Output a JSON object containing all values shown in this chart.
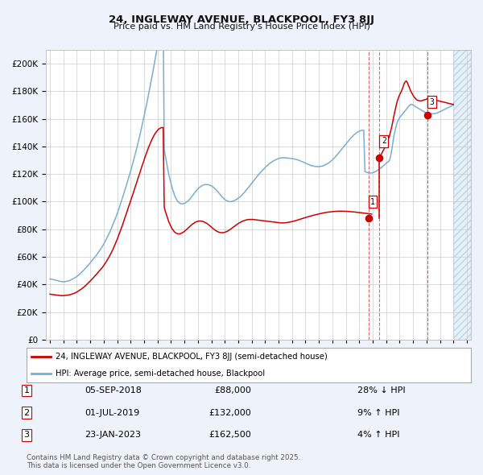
{
  "title": "24, INGLEWAY AVENUE, BLACKPOOL, FY3 8JJ",
  "subtitle": "Price paid vs. HM Land Registry's House Price Index (HPI)",
  "ytick_vals": [
    0,
    20000,
    40000,
    60000,
    80000,
    100000,
    120000,
    140000,
    160000,
    180000,
    200000
  ],
  "ylim": [
    0,
    210000
  ],
  "xlim_start": 1994.7,
  "xlim_end": 2026.3,
  "bg_color": "#eef2fa",
  "plot_bg_color": "#ffffff",
  "grid_color": "#cccccc",
  "red_color": "#cc0000",
  "blue_color": "#7aadd4",
  "hatch_color": "#c8d8ee",
  "shade_start": 2025.0,
  "transactions": [
    {
      "date": "05-SEP-2018",
      "price": 88000,
      "pct": "28% ↓ HPI",
      "year": 2018.68,
      "label": "1"
    },
    {
      "date": "01-JUL-2019",
      "price": 132000,
      "pct": "9% ↑ HPI",
      "year": 2019.5,
      "label": "2"
    },
    {
      "date": "23-JAN-2023",
      "price": 162500,
      "pct": "4% ↑ HPI",
      "year": 2023.07,
      "label": "3"
    }
  ],
  "legend_line1": "24, INGLEWAY AVENUE, BLACKPOOL, FY3 8JJ (semi-detached house)",
  "legend_line2": "HPI: Average price, semi-detached house, Blackpool",
  "copyright": "Contains HM Land Registry data © Crown copyright and database right 2025.\nThis data is licensed under the Open Government Licence v3.0.",
  "hpi_years": [
    1995.0,
    1995.08,
    1995.17,
    1995.25,
    1995.33,
    1995.42,
    1995.5,
    1995.58,
    1995.67,
    1995.75,
    1995.83,
    1995.92,
    1996.0,
    1996.08,
    1996.17,
    1996.25,
    1996.33,
    1996.42,
    1996.5,
    1996.58,
    1996.67,
    1996.75,
    1996.83,
    1996.92,
    1997.0,
    1997.08,
    1997.17,
    1997.25,
    1997.33,
    1997.42,
    1997.5,
    1997.58,
    1997.67,
    1997.75,
    1997.83,
    1997.92,
    1998.0,
    1998.08,
    1998.17,
    1998.25,
    1998.33,
    1998.42,
    1998.5,
    1998.58,
    1998.67,
    1998.75,
    1998.83,
    1998.92,
    1999.0,
    1999.08,
    1999.17,
    1999.25,
    1999.33,
    1999.42,
    1999.5,
    1999.58,
    1999.67,
    1999.75,
    1999.83,
    1999.92,
    2000.0,
    2000.08,
    2000.17,
    2000.25,
    2000.33,
    2000.42,
    2000.5,
    2000.58,
    2000.67,
    2000.75,
    2000.83,
    2000.92,
    2001.0,
    2001.08,
    2001.17,
    2001.25,
    2001.33,
    2001.42,
    2001.5,
    2001.58,
    2001.67,
    2001.75,
    2001.83,
    2001.92,
    2002.0,
    2002.08,
    2002.17,
    2002.25,
    2002.33,
    2002.42,
    2002.5,
    2002.58,
    2002.67,
    2002.75,
    2002.83,
    2002.92,
    2003.0,
    2003.08,
    2003.17,
    2003.25,
    2003.33,
    2003.42,
    2003.5,
    2003.58,
    2003.67,
    2003.75,
    2003.83,
    2003.92,
    2004.0,
    2004.08,
    2004.17,
    2004.25,
    2004.33,
    2004.42,
    2004.5,
    2004.58,
    2004.67,
    2004.75,
    2004.83,
    2004.92,
    2005.0,
    2005.08,
    2005.17,
    2005.25,
    2005.33,
    2005.42,
    2005.5,
    2005.58,
    2005.67,
    2005.75,
    2005.83,
    2005.92,
    2006.0,
    2006.08,
    2006.17,
    2006.25,
    2006.33,
    2006.42,
    2006.5,
    2006.58,
    2006.67,
    2006.75,
    2006.83,
    2006.92,
    2007.0,
    2007.08,
    2007.17,
    2007.25,
    2007.33,
    2007.42,
    2007.5,
    2007.58,
    2007.67,
    2007.75,
    2007.83,
    2007.92,
    2008.0,
    2008.08,
    2008.17,
    2008.25,
    2008.33,
    2008.42,
    2008.5,
    2008.58,
    2008.67,
    2008.75,
    2008.83,
    2008.92,
    2009.0,
    2009.08,
    2009.17,
    2009.25,
    2009.33,
    2009.42,
    2009.5,
    2009.58,
    2009.67,
    2009.75,
    2009.83,
    2009.92,
    2010.0,
    2010.08,
    2010.17,
    2010.25,
    2010.33,
    2010.42,
    2010.5,
    2010.58,
    2010.67,
    2010.75,
    2010.83,
    2010.92,
    2011.0,
    2011.08,
    2011.17,
    2011.25,
    2011.33,
    2011.42,
    2011.5,
    2011.58,
    2011.67,
    2011.75,
    2011.83,
    2011.92,
    2012.0,
    2012.08,
    2012.17,
    2012.25,
    2012.33,
    2012.42,
    2012.5,
    2012.58,
    2012.67,
    2012.75,
    2012.83,
    2012.92,
    2013.0,
    2013.08,
    2013.17,
    2013.25,
    2013.33,
    2013.42,
    2013.5,
    2013.58,
    2013.67,
    2013.75,
    2013.83,
    2013.92,
    2014.0,
    2014.08,
    2014.17,
    2014.25,
    2014.33,
    2014.42,
    2014.5,
    2014.58,
    2014.67,
    2014.75,
    2014.83,
    2014.92,
    2015.0,
    2015.08,
    2015.17,
    2015.25,
    2015.33,
    2015.42,
    2015.5,
    2015.58,
    2015.67,
    2015.75,
    2015.83,
    2015.92,
    2016.0,
    2016.08,
    2016.17,
    2016.25,
    2016.33,
    2016.42,
    2016.5,
    2016.58,
    2016.67,
    2016.75,
    2016.83,
    2016.92,
    2017.0,
    2017.08,
    2017.17,
    2017.25,
    2017.33,
    2017.42,
    2017.5,
    2017.58,
    2017.67,
    2017.75,
    2017.83,
    2017.92,
    2018.0,
    2018.08,
    2018.17,
    2018.25,
    2018.33,
    2018.42,
    2018.5,
    2018.58,
    2018.67,
    2018.75,
    2018.83,
    2018.92,
    2019.0,
    2019.08,
    2019.17,
    2019.25,
    2019.33,
    2019.42,
    2019.5,
    2019.58,
    2019.67,
    2019.75,
    2019.83,
    2019.92,
    2020.0,
    2020.08,
    2020.17,
    2020.25,
    2020.33,
    2020.42,
    2020.5,
    2020.58,
    2020.67,
    2020.75,
    2020.83,
    2020.92,
    2021.0,
    2021.08,
    2021.17,
    2021.25,
    2021.33,
    2021.42,
    2021.5,
    2021.58,
    2021.67,
    2021.75,
    2021.83,
    2021.92,
    2022.0,
    2022.08,
    2022.17,
    2022.25,
    2022.33,
    2022.42,
    2022.5,
    2022.58,
    2022.67,
    2022.75,
    2022.83,
    2022.92,
    2023.0,
    2023.08,
    2023.17,
    2023.25,
    2023.33,
    2023.42,
    2023.5,
    2023.58,
    2023.67,
    2023.75,
    2023.83,
    2023.92,
    2024.0,
    2024.08,
    2024.17,
    2024.25,
    2024.33,
    2024.42,
    2024.5,
    2024.58,
    2024.67,
    2024.75,
    2024.83,
    2024.92,
    2025.0
  ],
  "hpi_vals": [
    44000,
    43800,
    43700,
    43500,
    43300,
    43100,
    42900,
    42700,
    42500,
    42300,
    42100,
    42000,
    41900,
    42000,
    42100,
    42300,
    42500,
    42700,
    43000,
    43400,
    43800,
    44200,
    44700,
    45200,
    45800,
    46400,
    47100,
    47800,
    48600,
    49400,
    50200,
    51100,
    52000,
    52900,
    53800,
    54700,
    55700,
    56700,
    57700,
    58700,
    59700,
    60700,
    61800,
    62900,
    64100,
    65300,
    66600,
    67900,
    69300,
    70800,
    72300,
    73900,
    75500,
    77200,
    79000,
    80900,
    82900,
    84900,
    87000,
    89100,
    91300,
    93600,
    96000,
    98400,
    100900,
    103400,
    106000,
    108700,
    111400,
    114100,
    116800,
    119500,
    122300,
    125100,
    128000,
    131000,
    134100,
    137300,
    140600,
    143900,
    147300,
    150800,
    154400,
    158100,
    161900,
    165700,
    169600,
    173600,
    177700,
    181900,
    186100,
    190400,
    194800,
    199200,
    203700,
    208200,
    212800,
    217400,
    221900,
    226400,
    230700,
    234900,
    138000,
    133000,
    128500,
    124000,
    120000,
    116500,
    113200,
    110200,
    107500,
    105100,
    103100,
    101500,
    100200,
    99400,
    98800,
    98500,
    98400,
    98500,
    98700,
    99100,
    99700,
    100300,
    101100,
    102000,
    103000,
    104100,
    105200,
    106300,
    107400,
    108400,
    109300,
    110100,
    110700,
    111300,
    111800,
    112100,
    112300,
    112400,
    112400,
    112300,
    112100,
    111800,
    111400,
    110900,
    110300,
    109600,
    108800,
    107900,
    107000,
    106000,
    105000,
    104000,
    103100,
    102300,
    101600,
    101000,
    100600,
    100300,
    100100,
    100000,
    100100,
    100300,
    100600,
    101000,
    101400,
    101900,
    102500,
    103100,
    103800,
    104600,
    105400,
    106300,
    107200,
    108200,
    109200,
    110200,
    111300,
    112300,
    113400,
    114400,
    115500,
    116500,
    117500,
    118500,
    119500,
    120400,
    121300,
    122200,
    123000,
    123900,
    124700,
    125500,
    126200,
    127000,
    127600,
    128200,
    128800,
    129300,
    129800,
    130200,
    130600,
    131000,
    131300,
    131500,
    131700,
    131800,
    131800,
    131800,
    131700,
    131700,
    131600,
    131500,
    131400,
    131300,
    131200,
    131100,
    130900,
    130700,
    130500,
    130300,
    130000,
    129700,
    129400,
    129000,
    128700,
    128300,
    127900,
    127500,
    127200,
    126800,
    126500,
    126200,
    126000,
    125800,
    125600,
    125500,
    125400,
    125400,
    125400,
    125500,
    125600,
    125800,
    126100,
    126400,
    126800,
    127200,
    127700,
    128300,
    128900,
    129600,
    130300,
    131100,
    131900,
    132800,
    133800,
    134700,
    135700,
    136700,
    137700,
    138700,
    139700,
    140700,
    141700,
    142700,
    143700,
    144700,
    145600,
    146500,
    147400,
    148200,
    148900,
    149600,
    150200,
    150700,
    151100,
    151400,
    151600,
    151800,
    151800,
    121800,
    121500,
    121200,
    121000,
    120900,
    120800,
    120800,
    121000,
    121300,
    121600,
    122000,
    122500,
    123000,
    123600,
    124200,
    124900,
    125600,
    126300,
    127100,
    127800,
    128500,
    129000,
    130000,
    133000,
    138000,
    143000,
    148000,
    152000,
    155000,
    157500,
    159500,
    161000,
    162000,
    163000,
    164000,
    165000,
    166000,
    167000,
    168000,
    169000,
    170000,
    170500,
    170500,
    170000,
    169500,
    169000,
    168500,
    168000,
    167500,
    167000,
    166500,
    166000,
    165500,
    165000,
    164600,
    164300,
    164100,
    163900,
    163800,
    163700,
    163700,
    163700,
    163800,
    164000,
    164200,
    164500,
    164800,
    165200,
    165600,
    166000,
    166400,
    166800,
    167200,
    167600,
    168000,
    168400,
    168800,
    169200,
    169600,
    170000
  ],
  "red_years": [
    1995.0,
    1995.08,
    1995.17,
    1995.25,
    1995.33,
    1995.42,
    1995.5,
    1995.58,
    1995.67,
    1995.75,
    1995.83,
    1995.92,
    1996.0,
    1996.08,
    1996.17,
    1996.25,
    1996.33,
    1996.42,
    1996.5,
    1996.58,
    1996.67,
    1996.75,
    1996.83,
    1996.92,
    1997.0,
    1997.08,
    1997.17,
    1997.25,
    1997.33,
    1997.42,
    1997.5,
    1997.58,
    1997.67,
    1997.75,
    1997.83,
    1997.92,
    1998.0,
    1998.08,
    1998.17,
    1998.25,
    1998.33,
    1998.42,
    1998.5,
    1998.58,
    1998.67,
    1998.75,
    1998.83,
    1998.92,
    1999.0,
    1999.08,
    1999.17,
    1999.25,
    1999.33,
    1999.42,
    1999.5,
    1999.58,
    1999.67,
    1999.75,
    1999.83,
    1999.92,
    2000.0,
    2000.08,
    2000.17,
    2000.25,
    2000.33,
    2000.42,
    2000.5,
    2000.58,
    2000.67,
    2000.75,
    2000.83,
    2000.92,
    2001.0,
    2001.08,
    2001.17,
    2001.25,
    2001.33,
    2001.42,
    2001.5,
    2001.58,
    2001.67,
    2001.75,
    2001.83,
    2001.92,
    2002.0,
    2002.08,
    2002.17,
    2002.25,
    2002.33,
    2002.42,
    2002.5,
    2002.58,
    2002.67,
    2002.75,
    2002.83,
    2002.92,
    2003.0,
    2003.08,
    2003.17,
    2003.25,
    2003.33,
    2003.42,
    2003.5,
    2003.58,
    2003.67,
    2003.75,
    2003.83,
    2003.92,
    2004.0,
    2004.08,
    2004.17,
    2004.25,
    2004.33,
    2004.42,
    2004.5,
    2004.58,
    2004.67,
    2004.75,
    2004.83,
    2004.92,
    2005.0,
    2005.08,
    2005.17,
    2005.25,
    2005.33,
    2005.42,
    2005.5,
    2005.58,
    2005.67,
    2005.75,
    2005.83,
    2005.92,
    2006.0,
    2006.08,
    2006.17,
    2006.25,
    2006.33,
    2006.42,
    2006.5,
    2006.58,
    2006.67,
    2006.75,
    2006.83,
    2006.92,
    2007.0,
    2007.08,
    2007.17,
    2007.25,
    2007.33,
    2007.42,
    2007.5,
    2007.58,
    2007.67,
    2007.75,
    2007.83,
    2007.92,
    2008.0,
    2008.08,
    2008.17,
    2008.25,
    2008.33,
    2008.42,
    2008.5,
    2008.58,
    2008.67,
    2008.75,
    2008.83,
    2008.92,
    2009.0,
    2009.08,
    2009.17,
    2009.25,
    2009.33,
    2009.42,
    2009.5,
    2009.58,
    2009.67,
    2009.75,
    2009.83,
    2009.92,
    2010.0,
    2010.08,
    2010.17,
    2010.25,
    2010.33,
    2010.42,
    2010.5,
    2010.58,
    2010.67,
    2010.75,
    2010.83,
    2010.92,
    2011.0,
    2011.08,
    2011.17,
    2011.25,
    2011.33,
    2011.42,
    2011.5,
    2011.58,
    2011.67,
    2011.75,
    2011.83,
    2011.92,
    2012.0,
    2012.08,
    2012.17,
    2012.25,
    2012.33,
    2012.42,
    2012.5,
    2012.58,
    2012.67,
    2012.75,
    2012.83,
    2012.92,
    2013.0,
    2013.08,
    2013.17,
    2013.25,
    2013.33,
    2013.42,
    2013.5,
    2013.58,
    2013.67,
    2013.75,
    2013.83,
    2013.92,
    2014.0,
    2014.08,
    2014.17,
    2014.25,
    2014.33,
    2014.42,
    2014.5,
    2014.58,
    2014.67,
    2014.75,
    2014.83,
    2014.92,
    2015.0,
    2015.08,
    2015.17,
    2015.25,
    2015.33,
    2015.42,
    2015.5,
    2015.58,
    2015.67,
    2015.75,
    2015.83,
    2015.92,
    2016.0,
    2016.08,
    2016.17,
    2016.25,
    2016.33,
    2016.42,
    2016.5,
    2016.58,
    2016.67,
    2016.75,
    2016.83,
    2016.92,
    2017.0,
    2017.08,
    2017.17,
    2017.25,
    2017.33,
    2017.42,
    2017.5,
    2017.58,
    2017.67,
    2017.75,
    2017.83,
    2017.92,
    2018.0,
    2018.08,
    2018.17,
    2018.25,
    2018.33,
    2018.42,
    2018.5,
    2018.58,
    2018.67,
    2018.75,
    2018.83,
    2018.92
  ],
  "red_vals": [
    33000,
    32800,
    32700,
    32600,
    32500,
    32400,
    32300,
    32200,
    32100,
    32000,
    31900,
    31900,
    31900,
    32000,
    32100,
    32200,
    32300,
    32400,
    32600,
    32800,
    33100,
    33400,
    33700,
    34100,
    34500,
    35000,
    35500,
    36000,
    36600,
    37200,
    37900,
    38600,
    39300,
    40100,
    40900,
    41700,
    42500,
    43300,
    44200,
    45100,
    46000,
    46900,
    47800,
    48700,
    49700,
    50600,
    51600,
    52600,
    53700,
    54900,
    56200,
    57500,
    58900,
    60300,
    61800,
    63400,
    65100,
    66900,
    68700,
    70600,
    72600,
    74700,
    76900,
    79100,
    81400,
    83700,
    86100,
    88500,
    90900,
    93400,
    95800,
    98200,
    100600,
    103000,
    105400,
    107900,
    110400,
    112900,
    115400,
    117900,
    120400,
    122900,
    125400,
    127800,
    130200,
    132600,
    134900,
    137100,
    139200,
    141300,
    143200,
    145000,
    146700,
    148200,
    149500,
    150700,
    151700,
    152500,
    153100,
    153500,
    153700,
    153700,
    96000,
    93000,
    90300,
    87800,
    85600,
    83600,
    81900,
    80400,
    79200,
    78200,
    77500,
    77000,
    76700,
    76600,
    76700,
    77000,
    77400,
    77900,
    78500,
    79200,
    79900,
    80700,
    81400,
    82200,
    82900,
    83600,
    84200,
    84700,
    85200,
    85500,
    85800,
    85900,
    86000,
    85900,
    85700,
    85500,
    85100,
    84700,
    84200,
    83600,
    83000,
    82300,
    81600,
    80900,
    80200,
    79600,
    79000,
    78500,
    78100,
    77800,
    77600,
    77500,
    77500,
    77600,
    77800,
    78100,
    78500,
    78900,
    79400,
    80000,
    80600,
    81200,
    81800,
    82400,
    83000,
    83600,
    84100,
    84600,
    85100,
    85500,
    85900,
    86200,
    86500,
    86700,
    86900,
    87000,
    87100,
    87100,
    87100,
    87100,
    87000,
    86900,
    86800,
    86700,
    86600,
    86500,
    86400,
    86300,
    86200,
    86100,
    86000,
    85900,
    85800,
    85700,
    85600,
    85500,
    85400,
    85300,
    85200,
    85100,
    85000,
    84900,
    84800,
    84700,
    84600,
    84600,
    84600,
    84600,
    84700,
    84800,
    84900,
    85100,
    85200,
    85400,
    85600,
    85800,
    86000,
    86200,
    86400,
    86700,
    87000,
    87200,
    87500,
    87700,
    88000,
    88200,
    88500,
    88700,
    89000,
    89200,
    89400,
    89700,
    89900,
    90100,
    90300,
    90500,
    90700,
    90900,
    91100,
    91300,
    91500,
    91700,
    91800,
    92000,
    92100,
    92300,
    92400,
    92500,
    92600,
    92700,
    92800,
    92900,
    92900,
    93000,
    93000,
    93100,
    93100,
    93100,
    93100,
    93100,
    93100,
    93000,
    93000,
    93000,
    92900,
    92800,
    92800,
    92700,
    92600,
    92600,
    92500,
    92400,
    92300,
    92200,
    92100,
    92000,
    91900,
    91800,
    91700,
    91600,
    91500,
    91400,
    91300,
    91200,
    91100,
    91000
  ],
  "red2_years": [
    2019.5,
    2019.58,
    2019.67,
    2019.75,
    2019.83,
    2019.92,
    2020.0,
    2020.08,
    2020.17,
    2020.25,
    2020.33,
    2020.42,
    2020.5,
    2020.58,
    2020.67,
    2020.75,
    2020.83,
    2020.92,
    2021.0,
    2021.08,
    2021.17,
    2021.25,
    2021.33,
    2021.42,
    2021.5,
    2021.58,
    2021.67,
    2021.75,
    2021.83,
    2021.92,
    2022.0,
    2022.08,
    2022.17,
    2022.25,
    2022.33,
    2022.42,
    2022.5,
    2022.58,
    2022.67,
    2022.75,
    2022.83,
    2022.92,
    2023.0,
    2023.08,
    2023.17,
    2023.25,
    2023.33,
    2023.42,
    2023.5,
    2023.58,
    2023.67,
    2023.75,
    2023.83,
    2023.92,
    2024.0,
    2024.08,
    2024.17,
    2024.25,
    2024.33,
    2024.42,
    2024.5,
    2024.58,
    2024.67,
    2024.75,
    2024.83,
    2024.92,
    2025.0
  ],
  "red2_vals": [
    132000,
    133500,
    135000,
    136500,
    138000,
    139500,
    141000,
    143000,
    145500,
    148000,
    151000,
    154500,
    158500,
    162500,
    166500,
    170000,
    173000,
    175500,
    177500,
    179000,
    181000,
    183000,
    185500,
    187000,
    187500,
    186000,
    184000,
    182000,
    180000,
    178500,
    177000,
    175800,
    174800,
    174000,
    173500,
    173200,
    173000,
    173000,
    173200,
    173500,
    173800,
    174000,
    174300,
    174500,
    174600,
    174500,
    174400,
    174200,
    174000,
    173800,
    173600,
    173400,
    173200,
    173000,
    172800,
    172600,
    172400,
    172200,
    172000,
    171800,
    171600,
    171400,
    171200,
    171000,
    170800,
    170600,
    170500
  ]
}
